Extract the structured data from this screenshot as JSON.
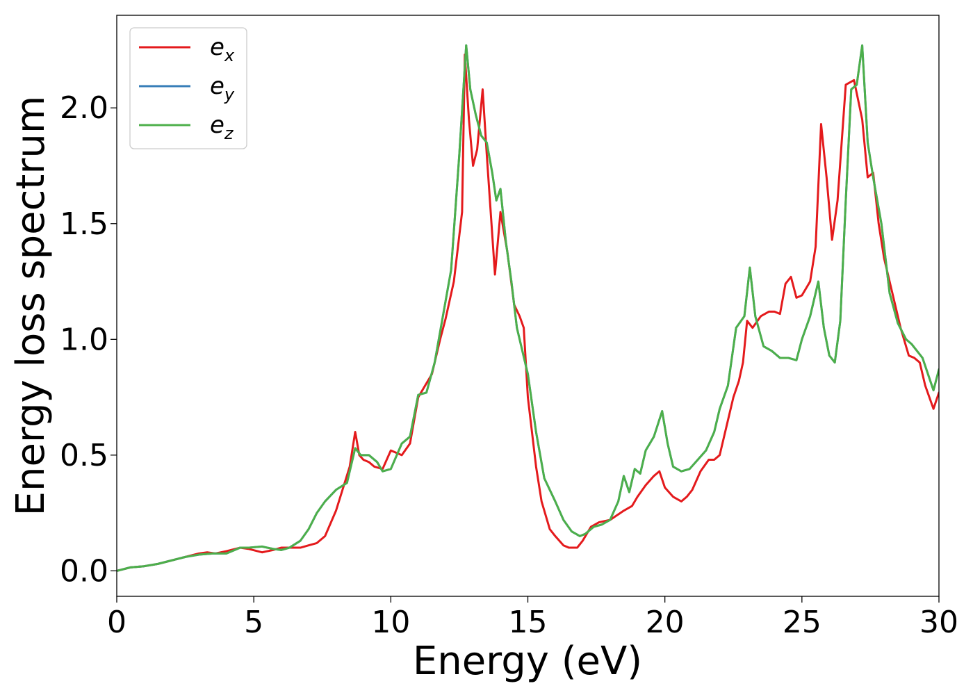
{
  "chart_data": {
    "type": "line",
    "title": "",
    "xlabel": "Energy (eV)",
    "ylabel": "Energy loss spectrum",
    "xlim": [
      0,
      30
    ],
    "ylim": [
      -0.11,
      2.4
    ],
    "xticks": [
      0,
      5,
      10,
      15,
      20,
      25,
      30
    ],
    "xtick_labels": [
      "0",
      "5",
      "10",
      "15",
      "20",
      "25",
      "30"
    ],
    "yticks": [
      0.0,
      0.5,
      1.0,
      1.5,
      2.0
    ],
    "ytick_labels": [
      "0.0",
      "0.5",
      "1.0",
      "1.5",
      "2.0"
    ],
    "grid": false,
    "legend_position": "top-left",
    "series": [
      {
        "name": "x",
        "legend_base": "e",
        "legend_sub": "x",
        "color": "#e41a1c",
        "x": [
          0,
          0.5,
          1,
          1.5,
          2,
          2.5,
          3,
          3.3,
          3.6,
          4,
          4.5,
          4.8,
          5.3,
          5.7,
          6,
          6.3,
          6.7,
          7,
          7.3,
          7.6,
          8,
          8.5,
          8.7,
          8.85,
          9,
          9.2,
          9.4,
          9.7,
          10,
          10.4,
          10.7,
          11,
          11.5,
          11.8,
          12,
          12.3,
          12.6,
          12.7,
          12.85,
          13,
          13.15,
          13.35,
          13.5,
          13.8,
          14,
          14.25,
          14.5,
          14.7,
          14.85,
          15,
          15.3,
          15.5,
          15.8,
          16,
          16.3,
          16.5,
          16.8,
          17,
          17.3,
          17.6,
          18,
          18.5,
          18.8,
          19,
          19.3,
          19.6,
          19.8,
          20,
          20.3,
          20.6,
          20.8,
          21,
          21.3,
          21.6,
          21.8,
          22,
          22.3,
          22.5,
          22.7,
          22.85,
          23,
          23.2,
          23.5,
          23.8,
          24,
          24.2,
          24.4,
          24.6,
          24.8,
          25,
          25.3,
          25.5,
          25.7,
          25.9,
          26.1,
          26.3,
          26.6,
          26.9,
          27.2,
          27.4,
          27.6,
          27.8,
          28,
          28.3,
          28.6,
          28.9,
          29.1,
          29.3,
          29.5,
          29.8,
          30
        ],
        "y": [
          0.0,
          0.015,
          0.02,
          0.03,
          0.045,
          0.06,
          0.075,
          0.08,
          0.075,
          0.085,
          0.1,
          0.095,
          0.08,
          0.09,
          0.1,
          0.1,
          0.1,
          0.11,
          0.12,
          0.15,
          0.26,
          0.45,
          0.6,
          0.5,
          0.48,
          0.47,
          0.45,
          0.44,
          0.52,
          0.5,
          0.55,
          0.75,
          0.85,
          1.0,
          1.09,
          1.25,
          1.55,
          2.23,
          1.95,
          1.75,
          1.82,
          2.08,
          1.8,
          1.28,
          1.55,
          1.38,
          1.15,
          1.1,
          1.05,
          0.75,
          0.45,
          0.3,
          0.18,
          0.15,
          0.11,
          0.1,
          0.1,
          0.13,
          0.19,
          0.21,
          0.22,
          0.26,
          0.28,
          0.32,
          0.37,
          0.41,
          0.43,
          0.36,
          0.32,
          0.3,
          0.32,
          0.35,
          0.43,
          0.48,
          0.48,
          0.5,
          0.65,
          0.75,
          0.82,
          0.9,
          1.08,
          1.05,
          1.1,
          1.12,
          1.12,
          1.11,
          1.24,
          1.27,
          1.18,
          1.19,
          1.25,
          1.4,
          1.93,
          1.7,
          1.43,
          1.6,
          2.1,
          2.12,
          1.95,
          1.7,
          1.72,
          1.5,
          1.35,
          1.2,
          1.05,
          0.93,
          0.92,
          0.9,
          0.8,
          0.7,
          0.77
        ]
      },
      {
        "name": "y",
        "legend_base": "e",
        "legend_sub": "y",
        "color": "#377eb8",
        "x": [
          0,
          0.5,
          1,
          1.5,
          2,
          2.5,
          3,
          3.5,
          4,
          4.5,
          4.8,
          5.3,
          5.7,
          6,
          6.3,
          6.7,
          7,
          7.3,
          7.6,
          8,
          8.4,
          8.7,
          8.9,
          9.2,
          9.5,
          9.7,
          10,
          10.4,
          10.7,
          11,
          11.3,
          11.6,
          11.9,
          12.2,
          12.5,
          12.75,
          12.9,
          13.1,
          13.3,
          13.5,
          13.7,
          13.85,
          14,
          14.2,
          14.4,
          14.6,
          14.8,
          15,
          15.3,
          15.6,
          16,
          16.3,
          16.6,
          16.9,
          17.1,
          17.4,
          17.7,
          18,
          18.3,
          18.5,
          18.7,
          18.9,
          19.1,
          19.3,
          19.6,
          19.9,
          20.1,
          20.3,
          20.6,
          20.9,
          21.2,
          21.5,
          21.8,
          22,
          22.3,
          22.6,
          22.9,
          23.1,
          23.3,
          23.6,
          23.9,
          24.2,
          24.5,
          24.8,
          25,
          25.3,
          25.6,
          25.8,
          26,
          26.2,
          26.4,
          26.6,
          26.8,
          27,
          27.2,
          27.4,
          27.6,
          27.9,
          28.2,
          28.5,
          28.8,
          29,
          29.2,
          29.4,
          29.6,
          29.8,
          30
        ],
        "y": [
          0.0,
          0.015,
          0.02,
          0.03,
          0.045,
          0.06,
          0.07,
          0.075,
          0.075,
          0.1,
          0.1,
          0.105,
          0.095,
          0.09,
          0.1,
          0.13,
          0.18,
          0.25,
          0.3,
          0.35,
          0.38,
          0.53,
          0.5,
          0.5,
          0.47,
          0.43,
          0.44,
          0.55,
          0.58,
          0.76,
          0.77,
          0.9,
          1.1,
          1.3,
          1.8,
          2.27,
          2.08,
          1.97,
          1.88,
          1.85,
          1.72,
          1.6,
          1.65,
          1.42,
          1.25,
          1.05,
          0.95,
          0.85,
          0.6,
          0.4,
          0.3,
          0.22,
          0.17,
          0.15,
          0.16,
          0.19,
          0.2,
          0.22,
          0.3,
          0.41,
          0.34,
          0.44,
          0.42,
          0.52,
          0.58,
          0.69,
          0.55,
          0.45,
          0.43,
          0.44,
          0.48,
          0.52,
          0.6,
          0.7,
          0.8,
          1.05,
          1.1,
          1.31,
          1.1,
          0.97,
          0.95,
          0.92,
          0.92,
          0.91,
          1.0,
          1.1,
          1.25,
          1.05,
          0.93,
          0.9,
          1.08,
          1.6,
          2.08,
          2.1,
          2.27,
          1.85,
          1.7,
          1.5,
          1.2,
          1.07,
          1.0,
          0.98,
          0.95,
          0.92,
          0.85,
          0.78,
          0.87
        ]
      },
      {
        "name": "z",
        "legend_base": "e",
        "legend_sub": "z",
        "color": "#4daf4a",
        "x": [
          0,
          0.5,
          1,
          1.5,
          2,
          2.5,
          3,
          3.5,
          4,
          4.5,
          4.8,
          5.3,
          5.7,
          6,
          6.3,
          6.7,
          7,
          7.3,
          7.6,
          8,
          8.4,
          8.7,
          8.9,
          9.2,
          9.5,
          9.7,
          10,
          10.4,
          10.7,
          11,
          11.3,
          11.6,
          11.9,
          12.2,
          12.5,
          12.75,
          12.9,
          13.1,
          13.3,
          13.5,
          13.7,
          13.85,
          14,
          14.2,
          14.4,
          14.6,
          14.8,
          15,
          15.3,
          15.6,
          16,
          16.3,
          16.6,
          16.9,
          17.1,
          17.4,
          17.7,
          18,
          18.3,
          18.5,
          18.7,
          18.9,
          19.1,
          19.3,
          19.6,
          19.9,
          20.1,
          20.3,
          20.6,
          20.9,
          21.2,
          21.5,
          21.8,
          22,
          22.3,
          22.6,
          22.9,
          23.1,
          23.3,
          23.6,
          23.9,
          24.2,
          24.5,
          24.8,
          25,
          25.3,
          25.6,
          25.8,
          26,
          26.2,
          26.4,
          26.6,
          26.8,
          27,
          27.2,
          27.4,
          27.6,
          27.9,
          28.2,
          28.5,
          28.8,
          29,
          29.2,
          29.4,
          29.6,
          29.8,
          30
        ],
        "y": [
          0.0,
          0.015,
          0.02,
          0.03,
          0.045,
          0.06,
          0.07,
          0.075,
          0.075,
          0.1,
          0.1,
          0.105,
          0.095,
          0.09,
          0.1,
          0.13,
          0.18,
          0.25,
          0.3,
          0.35,
          0.38,
          0.53,
          0.5,
          0.5,
          0.47,
          0.43,
          0.44,
          0.55,
          0.58,
          0.76,
          0.77,
          0.9,
          1.1,
          1.3,
          1.8,
          2.27,
          2.08,
          1.97,
          1.88,
          1.85,
          1.72,
          1.6,
          1.65,
          1.42,
          1.25,
          1.05,
          0.95,
          0.85,
          0.6,
          0.4,
          0.3,
          0.22,
          0.17,
          0.15,
          0.16,
          0.19,
          0.2,
          0.22,
          0.3,
          0.41,
          0.34,
          0.44,
          0.42,
          0.52,
          0.58,
          0.69,
          0.55,
          0.45,
          0.43,
          0.44,
          0.48,
          0.52,
          0.6,
          0.7,
          0.8,
          1.05,
          1.1,
          1.31,
          1.1,
          0.97,
          0.95,
          0.92,
          0.92,
          0.91,
          1.0,
          1.1,
          1.25,
          1.05,
          0.93,
          0.9,
          1.08,
          1.6,
          2.08,
          2.1,
          2.27,
          1.85,
          1.7,
          1.5,
          1.2,
          1.07,
          1.0,
          0.98,
          0.95,
          0.92,
          0.85,
          0.78,
          0.87
        ]
      }
    ]
  }
}
